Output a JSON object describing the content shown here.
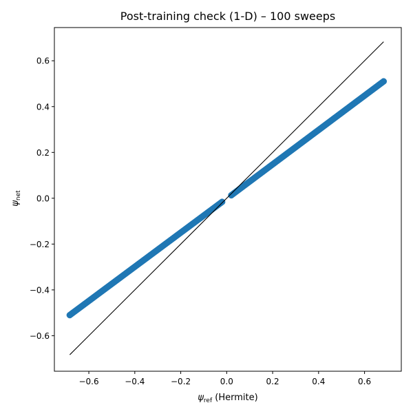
{
  "chart_data": {
    "type": "scatter",
    "title": "Post-training check (1-D) –  100 sweeps",
    "xlabel": {
      "symbol": "ψ",
      "subscript": "ref",
      "suffix": "  (Hermite)"
    },
    "ylabel": {
      "symbol": "ψ",
      "subscript": "net"
    },
    "xlim": [
      -0.75,
      0.76
    ],
    "ylim": [
      -0.755,
      0.745
    ],
    "xticks": [
      -0.6,
      -0.4,
      -0.2,
      0.0,
      0.2,
      0.4,
      0.6
    ],
    "yticks": [
      -0.6,
      -0.4,
      -0.2,
      0.0,
      0.2,
      0.4,
      0.6
    ],
    "xtick_labels": [
      "−0.6",
      "−0.4",
      "−0.2",
      "0.0",
      "0.2",
      "0.4",
      "0.6"
    ],
    "ytick_labels": [
      "−0.6",
      "−0.4",
      "−0.2",
      "0.0",
      "0.2",
      "0.4",
      "0.6"
    ],
    "grid": false,
    "series": [
      {
        "kind": "scatter",
        "color": "#1f77b4",
        "segments": [
          {
            "x_start": -0.683,
            "x_end": -0.02,
            "y_start": -0.51,
            "y_end": -0.016,
            "count": 120
          },
          {
            "x_start": 0.02,
            "x_end": 0.683,
            "y_start": 0.013,
            "y_end": 0.51,
            "count": 120
          }
        ]
      },
      {
        "kind": "line",
        "color": "#000000",
        "x": [
          -0.683,
          0.683
        ],
        "y": [
          -0.683,
          0.683
        ]
      }
    ]
  }
}
